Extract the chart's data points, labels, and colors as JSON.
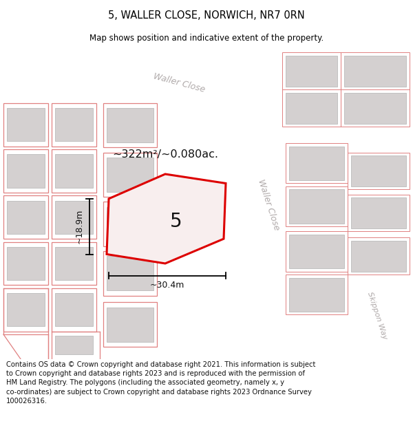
{
  "title": "5, WALLER CLOSE, NORWICH, NR7 0RN",
  "subtitle": "Map shows position and indicative extent of the property.",
  "footer_line1": "Contains OS data © Crown copyright and database right 2021. This information is subject",
  "footer_line2": "to Crown copyright and database rights 2023 and is reproduced with the permission of",
  "footer_line3": "HM Land Registry. The polygons (including the associated geometry, namely x, y",
  "footer_line4": "co-ordinates) are subject to Crown copyright and database rights 2023 Ordnance Survey",
  "footer_line5": "100026316.",
  "bg_color": "#f2f0f0",
  "road_color": "#ffffff",
  "building_fill": "#d4d0d0",
  "building_edge": "#bbbbbb",
  "parcel_edge_color": "#e08080",
  "highlight_edge": "#dd0000",
  "highlight_fill": "#f8eeee",
  "area_text": "~322m²/~0.080ac.",
  "label_text": "5",
  "dim_width": "~30.4m",
  "dim_height": "~18.9m",
  "road_label_top": "Waller Close",
  "road_label_right": "Waller Close",
  "road_label_br": "Skippon Way",
  "road_text_color": "#b0aaaa"
}
